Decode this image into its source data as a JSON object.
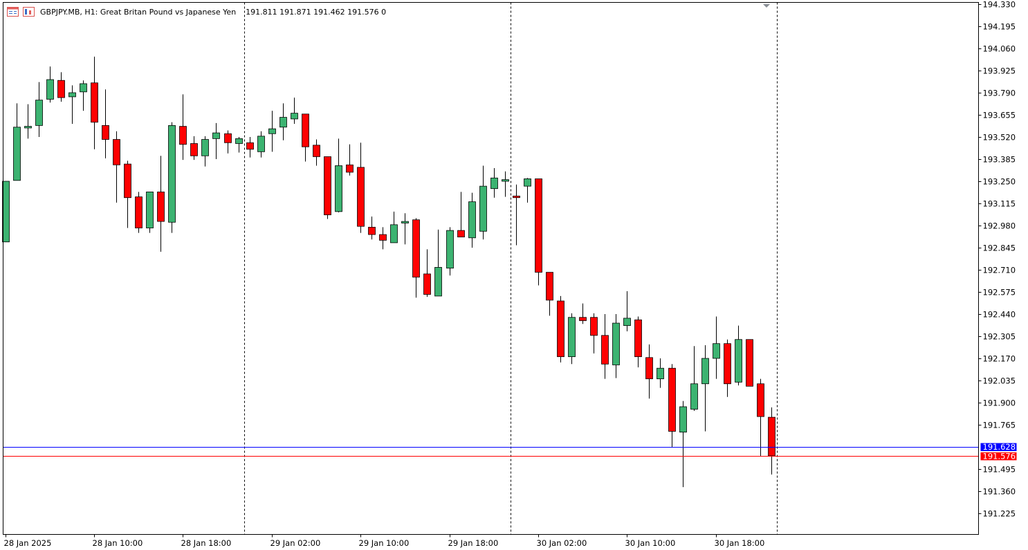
{
  "header": {
    "symbol_line": "GBPJPY.MB, H1:  Great Britan Pound vs Japanese Yen",
    "ohlc_line": "191.811 191.871 191.462 191.576  0"
  },
  "icons": [
    "chart-window-icon",
    "trading-panel-icon"
  ],
  "colors": {
    "bull": "#3cb371",
    "bear": "#ff0000",
    "bid_line": "#0000ff",
    "ask_line": "#ff0000",
    "axis": "#000000",
    "separator": "#000000"
  },
  "chart_data": {
    "type": "candlestick",
    "title": "",
    "xlabel": "",
    "ylabel": "",
    "ylim": [
      191.09,
      194.35
    ],
    "y_ticks": [
      "194.330",
      "194.195",
      "194.060",
      "193.925",
      "193.790",
      "193.655",
      "193.520",
      "193.385",
      "193.250",
      "193.115",
      "192.980",
      "192.845",
      "192.710",
      "192.575",
      "192.440",
      "192.305",
      "192.170",
      "192.035",
      "191.900",
      "191.765",
      "191.495",
      "191.360",
      "191.225"
    ],
    "x_labels": [
      {
        "index": 0,
        "label": "28 Jan 2025"
      },
      {
        "index": 8,
        "label": "28 Jan 10:00"
      },
      {
        "index": 16,
        "label": "28 Jan 18:00"
      },
      {
        "index": 24,
        "label": "29 Jan 02:00"
      },
      {
        "index": 32,
        "label": "29 Jan 10:00"
      },
      {
        "index": 40,
        "label": "29 Jan 18:00"
      },
      {
        "index": 48,
        "label": "30 Jan 02:00"
      },
      {
        "index": 56,
        "label": "30 Jan 10:00"
      },
      {
        "index": 64,
        "label": "30 Jan 18:00"
      }
    ],
    "day_separators_after_index": [
      21.5,
      45.5,
      69.5
    ],
    "price_lines": [
      {
        "name": "bid",
        "value": 191.628,
        "label": "191.628",
        "color": "#0000ff"
      },
      {
        "name": "close",
        "value": 191.576,
        "label": "191.576",
        "color": "#ff0000"
      }
    ],
    "candles": [
      {
        "o": 192.88,
        "h": 193.25,
        "l": 192.88,
        "c": 193.25
      },
      {
        "o": 193.255,
        "h": 193.725,
        "l": 193.255,
        "c": 193.58
      },
      {
        "o": 193.575,
        "h": 193.72,
        "l": 193.51,
        "c": 193.585
      },
      {
        "o": 193.59,
        "h": 193.855,
        "l": 193.52,
        "c": 193.745
      },
      {
        "o": 193.75,
        "h": 193.95,
        "l": 193.73,
        "c": 193.87
      },
      {
        "o": 193.865,
        "h": 193.915,
        "l": 193.735,
        "c": 193.76
      },
      {
        "o": 193.765,
        "h": 193.835,
        "l": 193.6,
        "c": 193.79
      },
      {
        "o": 193.795,
        "h": 193.865,
        "l": 193.68,
        "c": 193.845
      },
      {
        "o": 193.85,
        "h": 194.01,
        "l": 193.445,
        "c": 193.61
      },
      {
        "o": 193.59,
        "h": 193.81,
        "l": 193.39,
        "c": 193.505
      },
      {
        "o": 193.505,
        "h": 193.555,
        "l": 193.12,
        "c": 193.35
      },
      {
        "o": 193.355,
        "h": 193.375,
        "l": 192.965,
        "c": 193.15
      },
      {
        "o": 193.155,
        "h": 193.185,
        "l": 192.935,
        "c": 192.965
      },
      {
        "o": 192.965,
        "h": 193.185,
        "l": 192.935,
        "c": 193.185
      },
      {
        "o": 193.185,
        "h": 193.405,
        "l": 192.82,
        "c": 193.005
      },
      {
        "o": 193.0,
        "h": 193.61,
        "l": 192.935,
        "c": 193.59
      },
      {
        "o": 193.585,
        "h": 193.78,
        "l": 193.38,
        "c": 193.475
      },
      {
        "o": 193.48,
        "h": 193.525,
        "l": 193.38,
        "c": 193.405
      },
      {
        "o": 193.405,
        "h": 193.525,
        "l": 193.34,
        "c": 193.505
      },
      {
        "o": 193.51,
        "h": 193.605,
        "l": 193.385,
        "c": 193.545
      },
      {
        "o": 193.54,
        "h": 193.56,
        "l": 193.42,
        "c": 193.485
      },
      {
        "o": 193.48,
        "h": 193.52,
        "l": 193.425,
        "c": 193.51
      },
      {
        "o": 193.485,
        "h": 193.52,
        "l": 193.395,
        "c": 193.445
      },
      {
        "o": 193.43,
        "h": 193.555,
        "l": 193.395,
        "c": 193.525
      },
      {
        "o": 193.54,
        "h": 193.68,
        "l": 193.43,
        "c": 193.57
      },
      {
        "o": 193.58,
        "h": 193.725,
        "l": 193.5,
        "c": 193.64
      },
      {
        "o": 193.63,
        "h": 193.76,
        "l": 193.6,
        "c": 193.665
      },
      {
        "o": 193.66,
        "h": 193.66,
        "l": 193.37,
        "c": 193.46
      },
      {
        "o": 193.47,
        "h": 193.505,
        "l": 193.345,
        "c": 193.4
      },
      {
        "o": 193.4,
        "h": 193.4,
        "l": 193.02,
        "c": 193.045
      },
      {
        "o": 193.065,
        "h": 193.51,
        "l": 193.06,
        "c": 193.345
      },
      {
        "o": 193.35,
        "h": 193.475,
        "l": 193.285,
        "c": 193.305
      },
      {
        "o": 193.335,
        "h": 193.485,
        "l": 192.935,
        "c": 192.975
      },
      {
        "o": 192.97,
        "h": 193.035,
        "l": 192.895,
        "c": 192.925
      },
      {
        "o": 192.925,
        "h": 192.97,
        "l": 192.835,
        "c": 192.89
      },
      {
        "o": 192.875,
        "h": 193.065,
        "l": 192.875,
        "c": 192.985
      },
      {
        "o": 192.995,
        "h": 193.055,
        "l": 192.865,
        "c": 193.005
      },
      {
        "o": 193.015,
        "h": 193.025,
        "l": 192.54,
        "c": 192.665
      },
      {
        "o": 192.685,
        "h": 192.835,
        "l": 192.545,
        "c": 192.56
      },
      {
        "o": 192.55,
        "h": 192.955,
        "l": 192.55,
        "c": 192.725
      },
      {
        "o": 192.72,
        "h": 192.97,
        "l": 192.675,
        "c": 192.95
      },
      {
        "o": 192.95,
        "h": 193.185,
        "l": 192.91,
        "c": 192.91
      },
      {
        "o": 192.905,
        "h": 193.18,
        "l": 192.845,
        "c": 193.125
      },
      {
        "o": 192.945,
        "h": 193.345,
        "l": 192.895,
        "c": 193.22
      },
      {
        "o": 193.205,
        "h": 193.33,
        "l": 193.15,
        "c": 193.27
      },
      {
        "o": 193.25,
        "h": 193.31,
        "l": 193.155,
        "c": 193.26
      },
      {
        "o": 193.16,
        "h": 193.23,
        "l": 192.86,
        "c": 193.15
      },
      {
        "o": 193.22,
        "h": 193.27,
        "l": 193.12,
        "c": 193.265
      },
      {
        "o": 193.265,
        "h": 193.265,
        "l": 192.615,
        "c": 192.695
      },
      {
        "o": 192.695,
        "h": 192.695,
        "l": 192.43,
        "c": 192.525
      },
      {
        "o": 192.52,
        "h": 192.55,
        "l": 192.145,
        "c": 192.18
      },
      {
        "o": 192.18,
        "h": 192.445,
        "l": 192.135,
        "c": 192.42
      },
      {
        "o": 192.42,
        "h": 192.505,
        "l": 192.38,
        "c": 192.4
      },
      {
        "o": 192.42,
        "h": 192.445,
        "l": 192.2,
        "c": 192.31
      },
      {
        "o": 192.31,
        "h": 192.44,
        "l": 192.045,
        "c": 192.135
      },
      {
        "o": 192.13,
        "h": 192.44,
        "l": 192.05,
        "c": 192.385
      },
      {
        "o": 192.37,
        "h": 192.58,
        "l": 192.335,
        "c": 192.415
      },
      {
        "o": 192.405,
        "h": 192.425,
        "l": 192.115,
        "c": 192.18
      },
      {
        "o": 192.175,
        "h": 192.255,
        "l": 191.925,
        "c": 192.045
      },
      {
        "o": 192.045,
        "h": 192.17,
        "l": 191.99,
        "c": 192.11
      },
      {
        "o": 192.11,
        "h": 192.135,
        "l": 191.63,
        "c": 191.725
      },
      {
        "o": 191.72,
        "h": 191.91,
        "l": 191.385,
        "c": 191.875
      },
      {
        "o": 191.86,
        "h": 192.245,
        "l": 191.85,
        "c": 192.015
      },
      {
        "o": 192.015,
        "h": 192.25,
        "l": 191.725,
        "c": 192.17
      },
      {
        "o": 192.17,
        "h": 192.425,
        "l": 192.045,
        "c": 192.26
      },
      {
        "o": 192.26,
        "h": 192.285,
        "l": 191.935,
        "c": 192.015
      },
      {
        "o": 192.025,
        "h": 192.37,
        "l": 192.005,
        "c": 192.285
      },
      {
        "o": 192.285,
        "h": 192.285,
        "l": 192.0,
        "c": 192.0
      },
      {
        "o": 192.015,
        "h": 192.045,
        "l": 191.575,
        "c": 191.815
      },
      {
        "o": 191.811,
        "h": 191.871,
        "l": 191.462,
        "c": 191.576
      }
    ]
  }
}
